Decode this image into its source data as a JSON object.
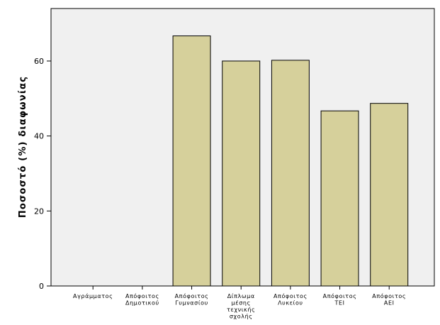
{
  "chart_data": {
    "type": "bar",
    "title": "",
    "xlabel": "",
    "ylabel": "Ποσοστό (%) διαφωνίας",
    "categories": [
      [
        "Αγράμματος"
      ],
      [
        "Απόφοιτος",
        "Δημοτικού"
      ],
      [
        "Απόφοιτος",
        "Γυμνασίου"
      ],
      [
        "Δίπλωμα",
        "μέσης",
        "τεχνικής",
        "σχολής"
      ],
      [
        "Απόφοιτος",
        "Λυκείου"
      ],
      [
        "Απόφοιτος",
        "ΤΕΙ"
      ],
      [
        "Απόφοιτος",
        "ΑΕΙ"
      ]
    ],
    "values": [
      0,
      0,
      66.7,
      60.0,
      60.2,
      46.7,
      48.7
    ],
    "ylim": [
      0,
      74
    ],
    "yticks": [
      0,
      20,
      40,
      60
    ],
    "grid": false,
    "legend": "none",
    "colors": {
      "plot_background": "#f0f0f0",
      "bar_fill": "#d6d09b",
      "bar_stroke": "#000000",
      "axis": "#000000"
    }
  }
}
